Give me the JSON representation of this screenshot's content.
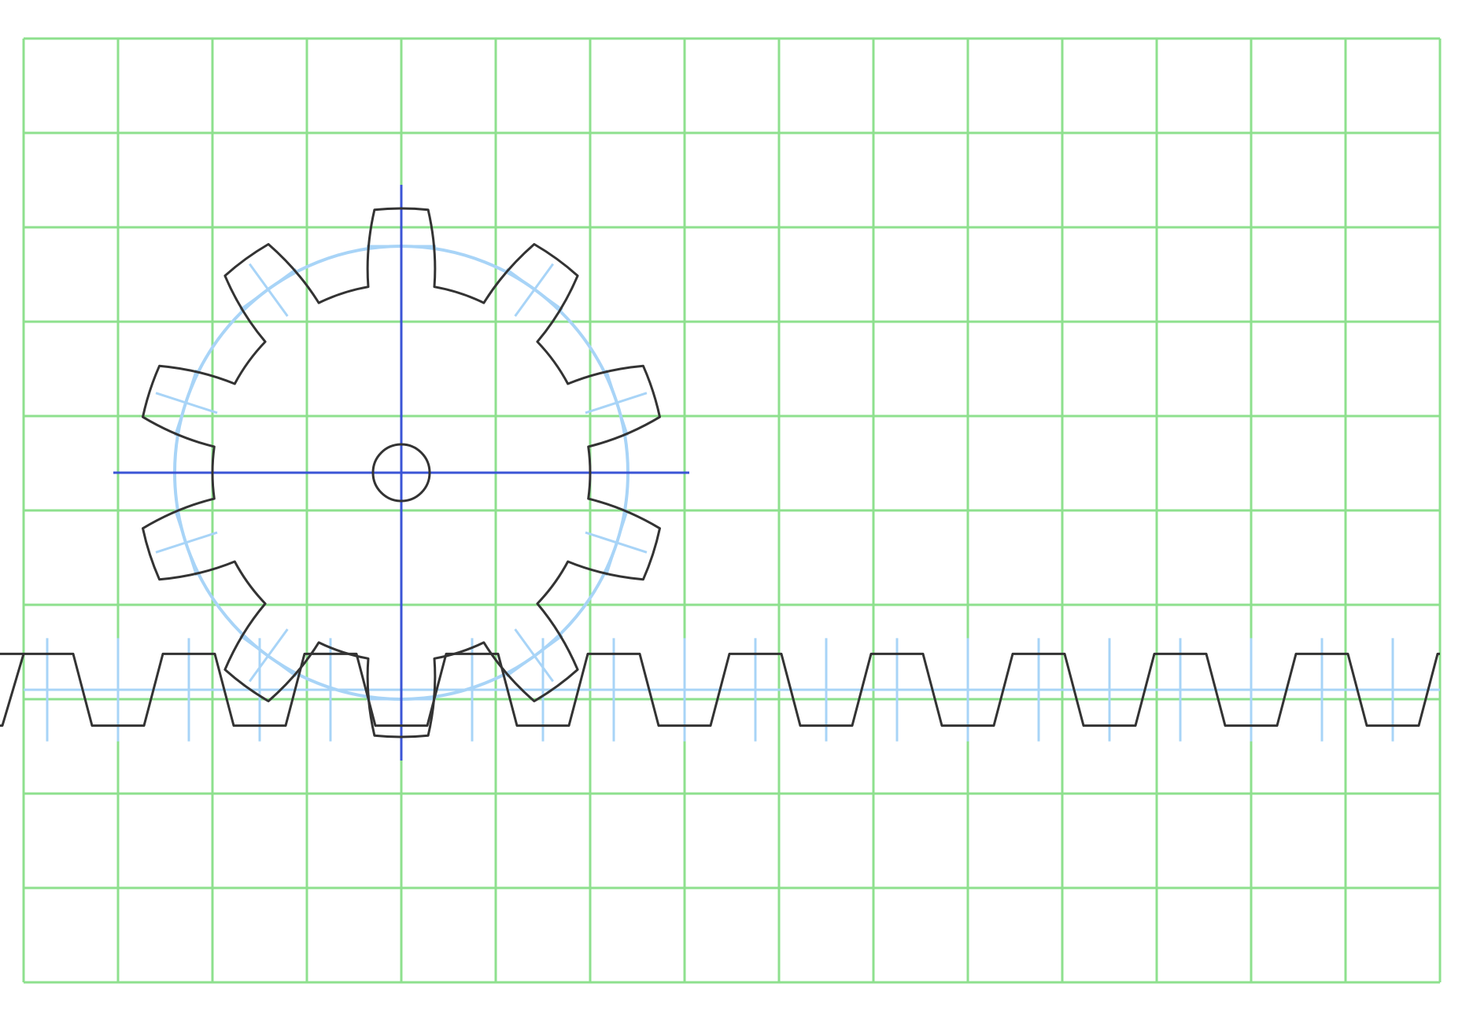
{
  "title": "",
  "colors": {
    "background": "#ffffff",
    "grid": "#8ee08e",
    "outline": "#333333",
    "pitch": "#a8d4f7",
    "center_axes": "#3b55d6"
  },
  "grid": {
    "columns": 15,
    "rows": 10
  },
  "gear": {
    "teeth": 10,
    "grid_center": [
      4,
      4.6
    ],
    "pitch_radius_cells": 2.4,
    "outside_radius_cells": 2.8,
    "root_radius_cells": 2.0,
    "bore_radius_cells": 0.3
  },
  "rack": {
    "teeth": 10,
    "circular_pitch_cells": 1.5,
    "addendum_cells": 0.38,
    "dedendum_cells": 0.38
  }
}
